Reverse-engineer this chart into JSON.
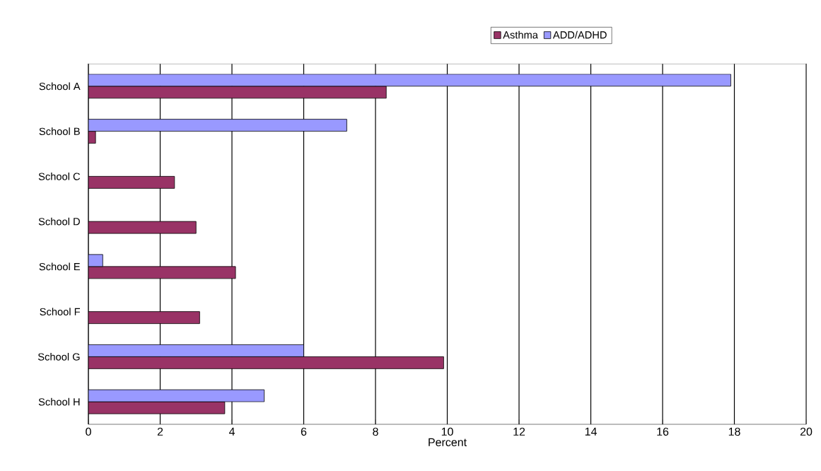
{
  "chart_data": {
    "type": "bar",
    "orientation": "horizontal",
    "xlabel": "Percent",
    "categories": [
      "School A",
      "School B",
      "School C",
      "School D",
      "School E",
      "School F",
      "School G",
      "School H"
    ],
    "series": [
      {
        "name": "Asthma",
        "color": "#993366",
        "values": [
          8.3,
          0.2,
          2.4,
          3.0,
          4.1,
          3.1,
          9.9,
          3.8
        ]
      },
      {
        "name": "ADD/ADHD",
        "color": "#9999ff",
        "values": [
          17.9,
          7.2,
          null,
          null,
          0.4,
          null,
          6.0,
          4.9
        ]
      }
    ],
    "xlim": [
      0,
      20
    ],
    "xticks": [
      0,
      2,
      4,
      6,
      8,
      10,
      12,
      14,
      16,
      18,
      20
    ],
    "grid": "x",
    "legend": "top"
  }
}
